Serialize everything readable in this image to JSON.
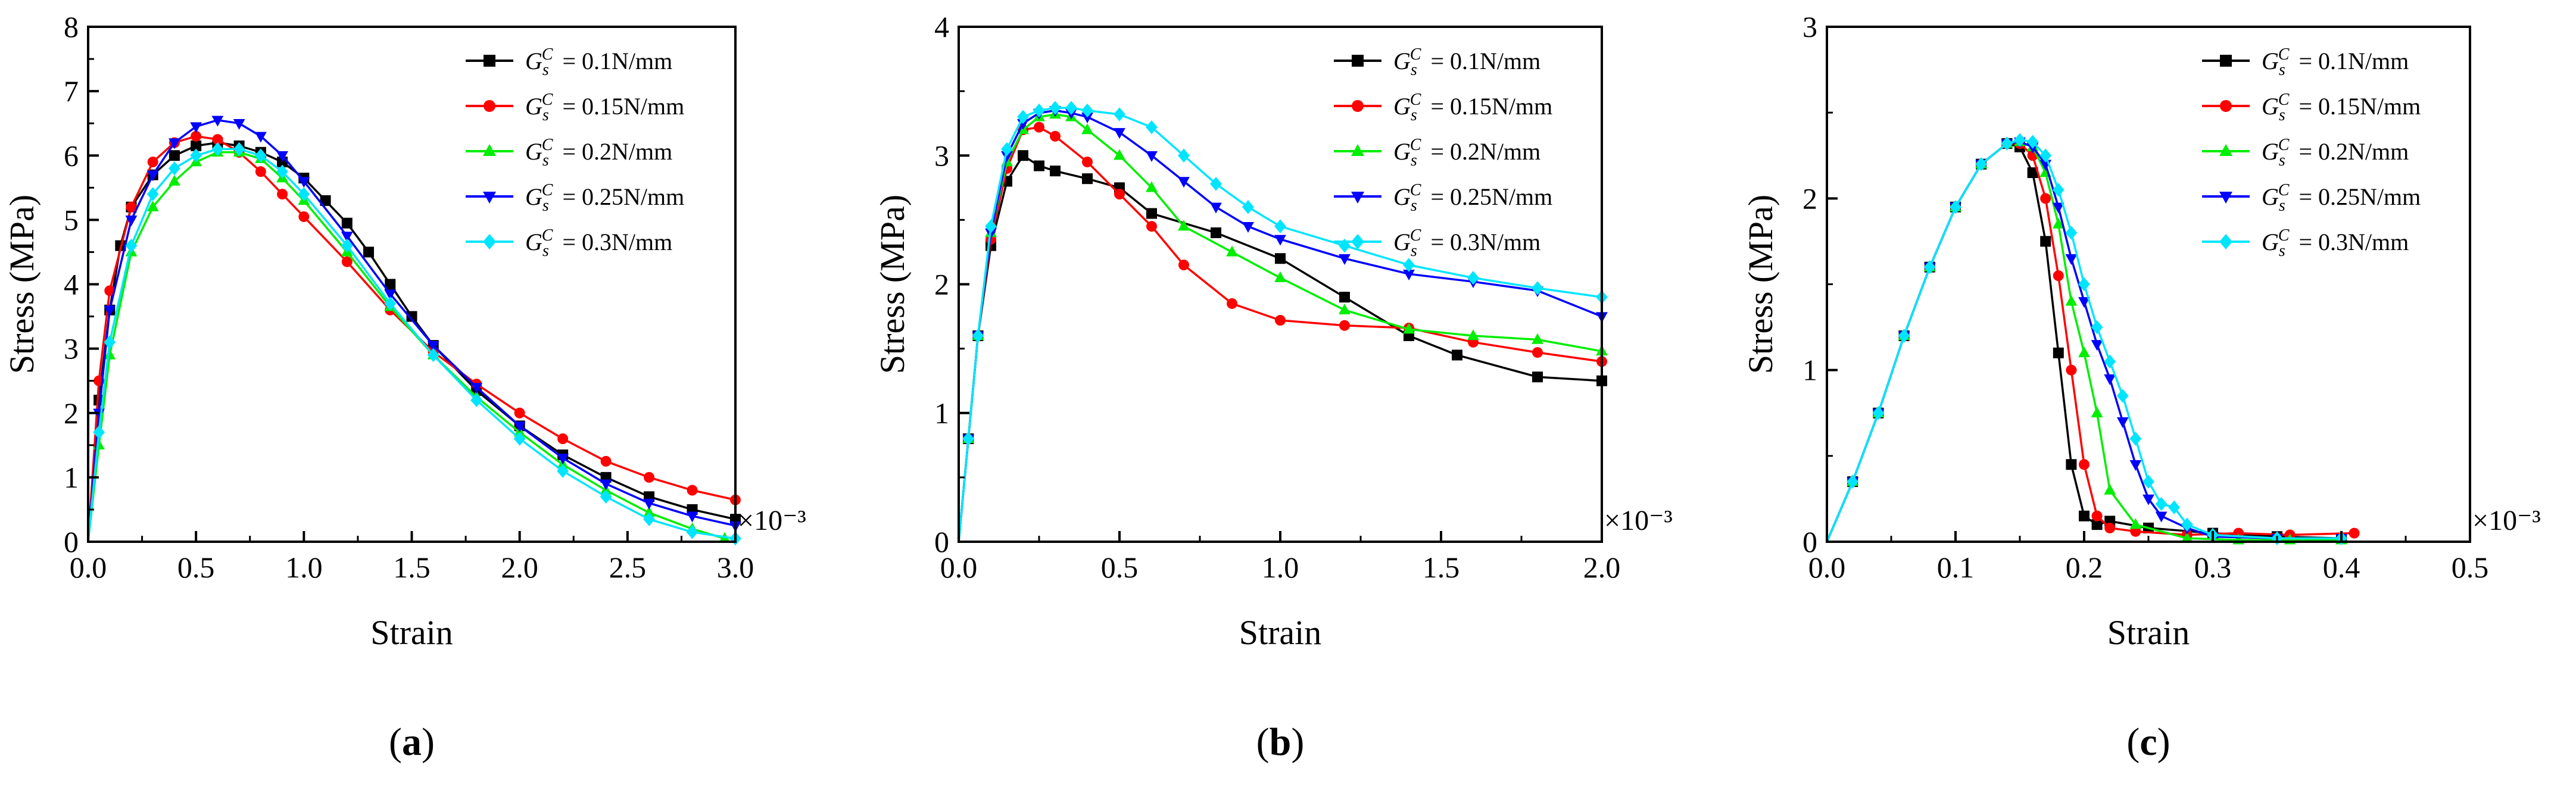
{
  "chart_data": [
    {
      "type": "line",
      "panel_label": "a",
      "xlabel": "Strain",
      "ylabel": "Stress (MPa)",
      "xlim": [
        0,
        3.0
      ],
      "ylim": [
        0,
        8
      ],
      "xticks": [
        "0.0",
        "0.5",
        "1.0",
        "1.5",
        "2.0",
        "2.5",
        "3.0"
      ],
      "yticks": [
        "0",
        "1",
        "2",
        "3",
        "4",
        "5",
        "6",
        "7",
        "8"
      ],
      "x_multiplier": "×10⁻³",
      "legend_position": "top-right",
      "series": [
        {
          "name": "0.1N/mm",
          "color": "#000000",
          "marker": "square",
          "x": [
            0,
            0.05,
            0.1,
            0.15,
            0.2,
            0.3,
            0.4,
            0.5,
            0.6,
            0.7,
            0.8,
            0.9,
            1.0,
            1.1,
            1.2,
            1.3,
            1.4,
            1.5,
            1.6,
            1.8,
            2.0,
            2.2,
            2.4,
            2.6,
            2.8,
            3.0
          ],
          "y": [
            0,
            2.2,
            3.6,
            4.6,
            5.2,
            5.7,
            6.0,
            6.15,
            6.2,
            6.15,
            6.05,
            5.9,
            5.65,
            5.3,
            4.95,
            4.5,
            4.0,
            3.5,
            3.05,
            2.35,
            1.8,
            1.35,
            1.0,
            0.7,
            0.5,
            0.35
          ]
        },
        {
          "name": "0.15N/mm",
          "color": "#ff0000",
          "marker": "circle",
          "x": [
            0,
            0.05,
            0.1,
            0.2,
            0.3,
            0.4,
            0.5,
            0.6,
            0.7,
            0.8,
            0.9,
            1.0,
            1.2,
            1.4,
            1.6,
            1.8,
            2.0,
            2.2,
            2.4,
            2.6,
            2.8,
            3.0
          ],
          "y": [
            0,
            2.5,
            3.9,
            5.2,
            5.9,
            6.2,
            6.3,
            6.25,
            6.05,
            5.75,
            5.4,
            5.05,
            4.35,
            3.6,
            2.95,
            2.45,
            2.0,
            1.6,
            1.25,
            1.0,
            0.8,
            0.65
          ]
        },
        {
          "name": "0.2N/mm",
          "color": "#00ee00",
          "marker": "triangle-up",
          "x": [
            0,
            0.05,
            0.1,
            0.2,
            0.3,
            0.4,
            0.5,
            0.6,
            0.7,
            0.8,
            0.9,
            1.0,
            1.2,
            1.4,
            1.6,
            1.8,
            2.0,
            2.2,
            2.4,
            2.6,
            2.8,
            2.95
          ],
          "y": [
            0,
            1.5,
            2.9,
            4.5,
            5.2,
            5.6,
            5.9,
            6.05,
            6.05,
            5.95,
            5.65,
            5.3,
            4.5,
            3.65,
            2.9,
            2.25,
            1.7,
            1.2,
            0.8,
            0.45,
            0.2,
            0.05
          ]
        },
        {
          "name": "0.25N/mm",
          "color": "#0000ff",
          "marker": "triangle-down",
          "x": [
            0,
            0.05,
            0.1,
            0.2,
            0.3,
            0.4,
            0.5,
            0.6,
            0.7,
            0.8,
            0.9,
            1.0,
            1.2,
            1.4,
            1.6,
            1.8,
            2.0,
            2.2,
            2.4,
            2.6,
            2.8,
            3.0
          ],
          "y": [
            0,
            2.0,
            3.6,
            5.0,
            5.7,
            6.2,
            6.45,
            6.55,
            6.5,
            6.3,
            6.0,
            5.6,
            4.75,
            3.85,
            3.05,
            2.4,
            1.8,
            1.3,
            0.9,
            0.6,
            0.4,
            0.25
          ]
        },
        {
          "name": "0.3N/mm",
          "color": "#00e5ff",
          "marker": "diamond",
          "x": [
            0,
            0.05,
            0.1,
            0.2,
            0.3,
            0.4,
            0.5,
            0.6,
            0.7,
            0.8,
            0.9,
            1.0,
            1.2,
            1.4,
            1.6,
            1.8,
            2.0,
            2.2,
            2.4,
            2.6,
            2.8,
            3.0
          ],
          "y": [
            0,
            1.7,
            3.1,
            4.6,
            5.4,
            5.8,
            6.0,
            6.1,
            6.1,
            6.0,
            5.75,
            5.4,
            4.6,
            3.7,
            2.9,
            2.2,
            1.6,
            1.1,
            0.7,
            0.35,
            0.15,
            0.05
          ]
        }
      ]
    },
    {
      "type": "line",
      "panel_label": "b",
      "xlabel": "Strain",
      "ylabel": "Stress (MPa)",
      "xlim": [
        0,
        2.0
      ],
      "ylim": [
        0,
        4
      ],
      "xticks": [
        "0.0",
        "0.5",
        "1.0",
        "1.5",
        "2.0"
      ],
      "yticks": [
        "0",
        "1",
        "2",
        "3",
        "4"
      ],
      "x_multiplier": "×10⁻³",
      "legend_position": "top-right",
      "series": [
        {
          "name": "0.1N/mm",
          "color": "#000000",
          "marker": "square",
          "x": [
            0,
            0.03,
            0.06,
            0.1,
            0.15,
            0.2,
            0.25,
            0.3,
            0.4,
            0.5,
            0.6,
            0.8,
            1.0,
            1.2,
            1.4,
            1.55,
            1.8,
            2.0
          ],
          "y": [
            0,
            0.8,
            1.6,
            2.3,
            2.8,
            3.0,
            2.92,
            2.88,
            2.82,
            2.75,
            2.55,
            2.4,
            2.2,
            1.9,
            1.6,
            1.45,
            1.28,
            1.25
          ]
        },
        {
          "name": "0.15N/mm",
          "color": "#ff0000",
          "marker": "circle",
          "x": [
            0,
            0.03,
            0.06,
            0.1,
            0.15,
            0.2,
            0.25,
            0.3,
            0.4,
            0.5,
            0.6,
            0.7,
            0.85,
            1.0,
            1.2,
            1.4,
            1.6,
            1.8,
            2.0
          ],
          "y": [
            0,
            0.8,
            1.6,
            2.35,
            2.9,
            3.2,
            3.22,
            3.15,
            2.95,
            2.7,
            2.45,
            2.15,
            1.85,
            1.72,
            1.68,
            1.66,
            1.55,
            1.47,
            1.4
          ]
        },
        {
          "name": "0.2N/mm",
          "color": "#00ee00",
          "marker": "triangle-up",
          "x": [
            0,
            0.03,
            0.06,
            0.1,
            0.15,
            0.2,
            0.25,
            0.3,
            0.35,
            0.4,
            0.5,
            0.6,
            0.7,
            0.85,
            1.0,
            1.2,
            1.4,
            1.6,
            1.8,
            2.0
          ],
          "y": [
            0,
            0.8,
            1.6,
            2.4,
            2.95,
            3.2,
            3.3,
            3.32,
            3.3,
            3.2,
            3.0,
            2.75,
            2.45,
            2.25,
            2.05,
            1.8,
            1.65,
            1.6,
            1.57,
            1.48
          ]
        },
        {
          "name": "0.25N/mm",
          "color": "#0000ff",
          "marker": "triangle-down",
          "x": [
            0,
            0.03,
            0.06,
            0.1,
            0.15,
            0.2,
            0.25,
            0.3,
            0.35,
            0.4,
            0.5,
            0.6,
            0.7,
            0.8,
            0.9,
            1.0,
            1.2,
            1.4,
            1.6,
            1.8,
            2.0
          ],
          "y": [
            0,
            0.8,
            1.6,
            2.4,
            3.0,
            3.25,
            3.33,
            3.35,
            3.33,
            3.3,
            3.18,
            3.0,
            2.8,
            2.6,
            2.45,
            2.35,
            2.2,
            2.08,
            2.02,
            1.95,
            1.75
          ]
        },
        {
          "name": "0.3N/mm",
          "color": "#00e5ff",
          "marker": "diamond",
          "x": [
            0,
            0.03,
            0.06,
            0.1,
            0.15,
            0.2,
            0.25,
            0.3,
            0.35,
            0.4,
            0.5,
            0.6,
            0.7,
            0.8,
            0.9,
            1.0,
            1.2,
            1.4,
            1.6,
            1.8,
            2.0
          ],
          "y": [
            0,
            0.8,
            1.6,
            2.45,
            3.05,
            3.3,
            3.35,
            3.37,
            3.37,
            3.35,
            3.32,
            3.22,
            3.0,
            2.78,
            2.6,
            2.45,
            2.3,
            2.15,
            2.05,
            1.97,
            1.9
          ]
        }
      ]
    },
    {
      "type": "line",
      "panel_label": "c",
      "xlabel": "Strain",
      "ylabel": "Stress (MPa)",
      "xlim": [
        0,
        0.5
      ],
      "ylim": [
        0,
        3
      ],
      "xticks": [
        "0.0",
        "0.1",
        "0.2",
        "0.3",
        "0.4",
        "0.5"
      ],
      "yticks": [
        "0",
        "1",
        "2",
        "3"
      ],
      "x_multiplier": "×10⁻³",
      "legend_position": "top-right",
      "series": [
        {
          "name": "0.1N/mm",
          "color": "#000000",
          "marker": "square",
          "x": [
            0,
            0.02,
            0.04,
            0.06,
            0.08,
            0.1,
            0.12,
            0.14,
            0.15,
            0.16,
            0.17,
            0.18,
            0.19,
            0.2,
            0.21,
            0.22,
            0.25,
            0.3,
            0.35,
            0.4
          ],
          "y": [
            0,
            0.35,
            0.75,
            1.2,
            1.6,
            1.95,
            2.2,
            2.32,
            2.3,
            2.15,
            1.75,
            1.1,
            0.45,
            0.15,
            0.1,
            0.12,
            0.08,
            0.05,
            0.03,
            0.02
          ]
        },
        {
          "name": "0.15N/mm",
          "color": "#ff0000",
          "marker": "circle",
          "x": [
            0,
            0.02,
            0.04,
            0.06,
            0.08,
            0.1,
            0.12,
            0.14,
            0.15,
            0.16,
            0.17,
            0.18,
            0.19,
            0.2,
            0.21,
            0.22,
            0.24,
            0.28,
            0.32,
            0.36,
            0.41
          ],
          "y": [
            0,
            0.35,
            0.75,
            1.2,
            1.6,
            1.95,
            2.2,
            2.32,
            2.32,
            2.25,
            2.0,
            1.55,
            1.0,
            0.45,
            0.15,
            0.08,
            0.06,
            0.04,
            0.05,
            0.04,
            0.05
          ]
        },
        {
          "name": "0.2N/mm",
          "color": "#00ee00",
          "marker": "triangle-up",
          "x": [
            0,
            0.02,
            0.04,
            0.06,
            0.08,
            0.1,
            0.12,
            0.14,
            0.15,
            0.16,
            0.17,
            0.18,
            0.19,
            0.2,
            0.21,
            0.22,
            0.24,
            0.28,
            0.32,
            0.36,
            0.4
          ],
          "y": [
            0,
            0.35,
            0.75,
            1.2,
            1.6,
            1.95,
            2.2,
            2.32,
            2.33,
            2.3,
            2.15,
            1.85,
            1.4,
            1.1,
            0.75,
            0.3,
            0.1,
            0.02,
            0.01,
            0.01,
            0.01
          ]
        },
        {
          "name": "0.25N/mm",
          "color": "#0000ff",
          "marker": "triangle-down",
          "x": [
            0,
            0.02,
            0.04,
            0.06,
            0.08,
            0.1,
            0.12,
            0.14,
            0.15,
            0.16,
            0.17,
            0.18,
            0.19,
            0.2,
            0.21,
            0.22,
            0.23,
            0.24,
            0.25,
            0.26,
            0.28,
            0.3,
            0.35,
            0.4
          ],
          "y": [
            0,
            0.35,
            0.75,
            1.2,
            1.6,
            1.95,
            2.2,
            2.32,
            2.33,
            2.3,
            2.2,
            1.95,
            1.65,
            1.4,
            1.15,
            0.95,
            0.7,
            0.45,
            0.25,
            0.15,
            0.08,
            0.03,
            0.02,
            0.02
          ]
        },
        {
          "name": "0.3N/mm",
          "color": "#00e5ff",
          "marker": "diamond",
          "x": [
            0,
            0.02,
            0.04,
            0.06,
            0.08,
            0.1,
            0.12,
            0.14,
            0.15,
            0.16,
            0.17,
            0.18,
            0.19,
            0.2,
            0.21,
            0.22,
            0.23,
            0.24,
            0.25,
            0.26,
            0.27,
            0.28,
            0.3,
            0.35,
            0.4
          ],
          "y": [
            0,
            0.35,
            0.75,
            1.2,
            1.6,
            1.95,
            2.2,
            2.32,
            2.34,
            2.33,
            2.25,
            2.05,
            1.8,
            1.5,
            1.25,
            1.05,
            0.85,
            0.6,
            0.35,
            0.22,
            0.2,
            0.1,
            0.04,
            0.02,
            0.02
          ]
        }
      ]
    }
  ]
}
